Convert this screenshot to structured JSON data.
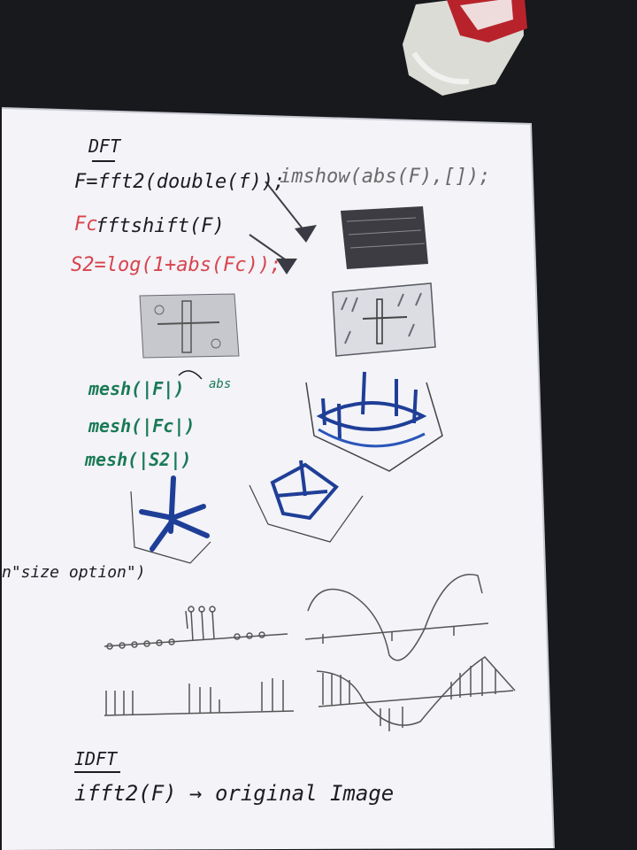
{
  "notes": {
    "dft_heading": "DFT",
    "line_fft2": "F=fft2(double(f));",
    "line_imshow": "imshow(abs(F),[]);",
    "line_fc_label": "Fc",
    "line_fftshift": "fftshift(F)",
    "line_log": "S2=log(1+abs(Fc));",
    "mesh_1": "mesh(|F|)",
    "mesh_1_note": "abs",
    "mesh_2": "mesh(|Fc|)",
    "mesh_3": "mesh(|S2|)",
    "size_option": "n\"size option\")",
    "idft_heading": "IDFT",
    "line_ifft2": "ifft2(F) → original Image"
  },
  "colors": {
    "ink_black": "#1c1c22",
    "ink_blue": "#1f3e97",
    "ink_green": "#1a7a55",
    "ink_red": "#d9434c",
    "pencil": "#6a6a6a",
    "paper": "#f3f3f8",
    "background": "#17191c"
  }
}
